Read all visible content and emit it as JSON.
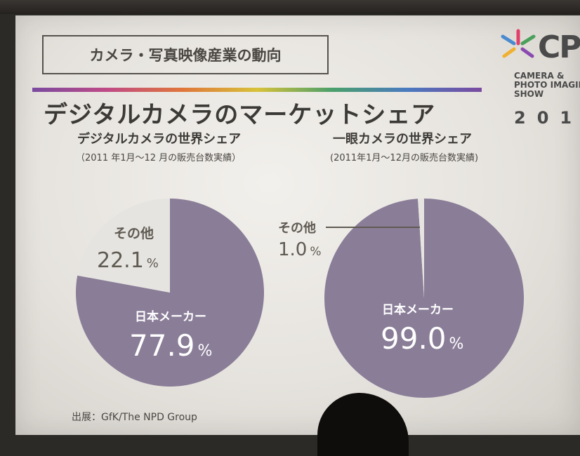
{
  "header": {
    "category": "カメラ・写真映像産業の動向",
    "title": "デジタルカメラのマーケットシェア"
  },
  "logo": {
    "text": "CP",
    "lines": [
      "CAMERA &",
      "PHOTO IMAGIN",
      "SHOW"
    ],
    "year": "201"
  },
  "source": "出展：GfK/The NPD Group",
  "colors": {
    "japan": "#8a7d98",
    "other": "#e6e4e0",
    "label_dark": "#5f5a52",
    "label_light": "#ffffff"
  },
  "chart_data": [
    {
      "type": "pie",
      "title": "デジタルカメラの世界シェア",
      "subtitle": "（2011 年1月～12 月の販売台数実績）",
      "slices": [
        {
          "label": "日本メーカー",
          "value": 77.9,
          "display": "77.9",
          "unit": "%"
        },
        {
          "label": "その他",
          "value": 22.1,
          "display": "22.1",
          "unit": "%"
        }
      ]
    },
    {
      "type": "pie",
      "title": "一眼カメラの世界シェア",
      "subtitle": "(2011年1月～12月の販売台数実績)",
      "slices": [
        {
          "label": "日本メーカー",
          "value": 99.0,
          "display": "99.0",
          "unit": "%"
        },
        {
          "label": "その他",
          "value": 1.0,
          "display": "1.0",
          "unit": "%"
        }
      ]
    }
  ]
}
